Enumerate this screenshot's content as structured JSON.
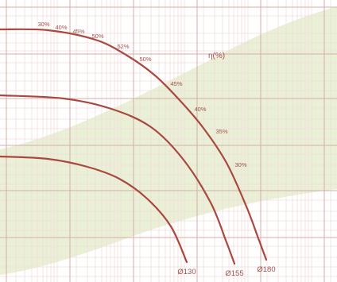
{
  "chart_data": {
    "type": "line",
    "title": "",
    "xlabel": "",
    "ylabel": "",
    "grid": true,
    "efficiency_axis_label": "η(%)",
    "colors": {
      "curve": "#a84840",
      "grid_major": "#d8aeaa",
      "grid_minor": "#f0dedb",
      "zone_fill": "#e9f0d5",
      "label": "#a0524c"
    },
    "series": [
      {
        "name": "Ø130",
        "points": [
          [
            0,
            197
          ],
          [
            60,
            200
          ],
          [
            110,
            210
          ],
          [
            150,
            225
          ],
          [
            185,
            250
          ],
          [
            215,
            285
          ],
          [
            235,
            330
          ]
        ]
      },
      {
        "name": "Ø155",
        "points": [
          [
            0,
            120
          ],
          [
            80,
            124
          ],
          [
            140,
            137
          ],
          [
            190,
            160
          ],
          [
            230,
            200
          ],
          [
            265,
            255
          ],
          [
            285,
            305
          ],
          [
            295,
            332
          ]
        ]
      },
      {
        "name": "Ø180",
        "points": [
          [
            0,
            37
          ],
          [
            60,
            38
          ],
          [
            120,
            50
          ],
          [
            160,
            70
          ],
          [
            195,
            95
          ],
          [
            225,
            125
          ],
          [
            255,
            160
          ],
          [
            285,
            205
          ],
          [
            310,
            260
          ],
          [
            325,
            300
          ],
          [
            335,
            327
          ]
        ]
      }
    ],
    "efficiency_labels": [
      "30%",
      "40%",
      "45%",
      "50%",
      "52%",
      "50%",
      "45%",
      "40%",
      "35%",
      "30%"
    ],
    "efficiency_label_points": [
      [
        55,
        33
      ],
      [
        77,
        37
      ],
      [
        99,
        42
      ],
      [
        123,
        48
      ],
      [
        155,
        61
      ],
      [
        183,
        77
      ],
      [
        222,
        108
      ],
      [
        252,
        140
      ],
      [
        279,
        168
      ],
      [
        303,
        210
      ]
    ]
  }
}
